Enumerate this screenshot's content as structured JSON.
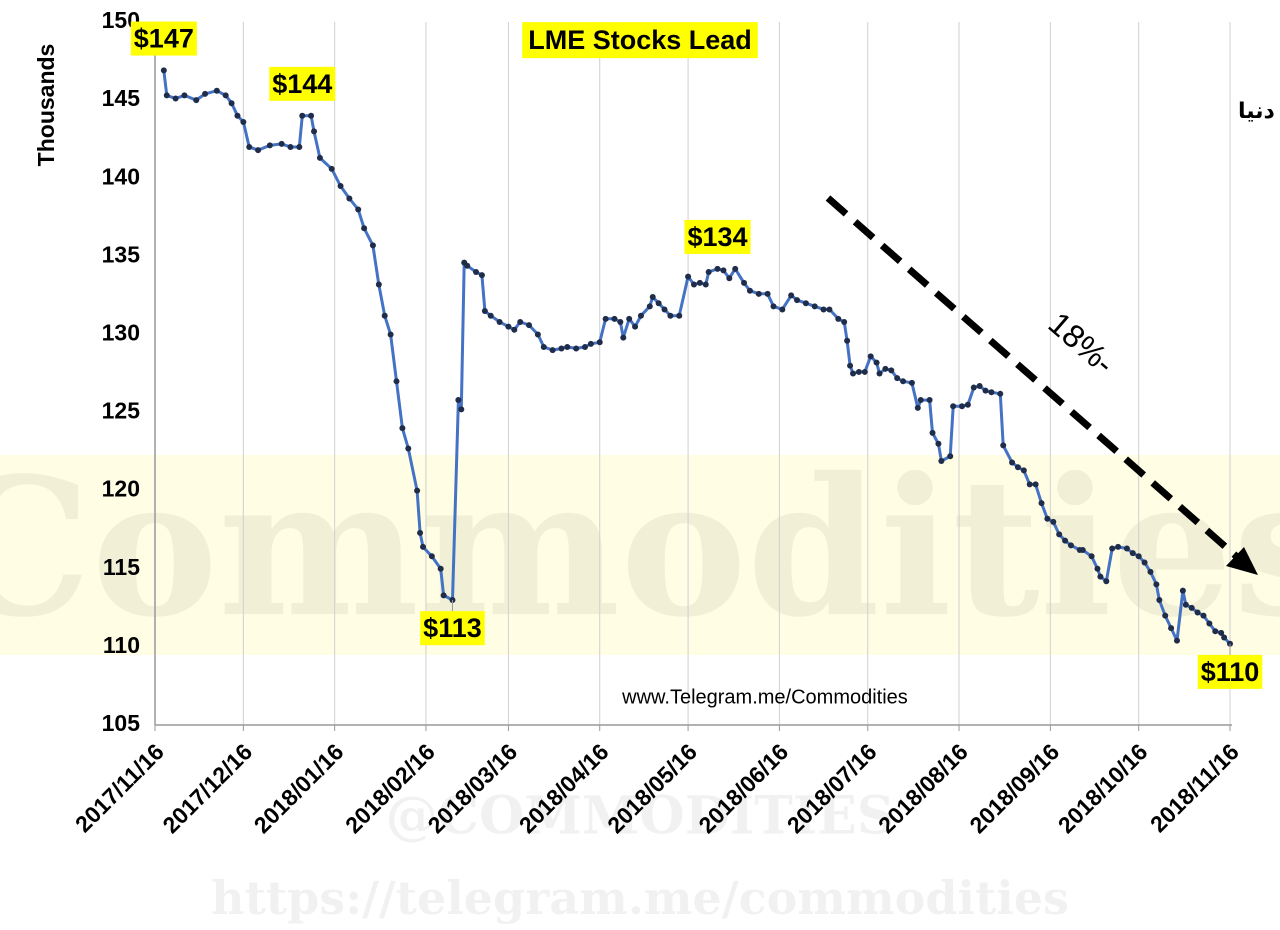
{
  "chart_data": {
    "type": "line",
    "title": "LME Stocks Lead",
    "subtitle": "تداوم کاهش موجودی سرب در انبارهای LME دنیا",
    "y_label": "Thousands",
    "trend_annotation": "18%-",
    "source": "www.Telegram.me/Commodities",
    "watermark": {
      "main": "Commodities",
      "handle": "@COMMODITIES",
      "url": "https://telegram.me/commodities"
    },
    "color": "#4472c4",
    "marker_color": "#1f2d4a",
    "grid": "x",
    "xlim": [
      "2017/11/16",
      "2018/11/16"
    ],
    "xticks": [
      "2017/11/16",
      "2017/12/16",
      "2018/01/16",
      "2018/02/16",
      "2018/03/16",
      "2018/04/16",
      "2018/05/16",
      "2018/06/16",
      "2018/07/16",
      "2018/08/16",
      "2018/09/16",
      "2018/10/16",
      "2018/11/16"
    ],
    "ylim": [
      105,
      150
    ],
    "yticks": [
      105,
      110,
      115,
      120,
      125,
      130,
      135,
      140,
      145,
      150
    ],
    "x": [
      "2017/11/19",
      "2017/11/20",
      "2017/11/23",
      "2017/11/26",
      "2017/11/30",
      "2017/12/03",
      "2017/12/07",
      "2017/12/10",
      "2017/12/12",
      "2017/12/14",
      "2017/12/16",
      "2017/12/18",
      "2017/12/21",
      "2017/12/25",
      "2017/12/29",
      "2018/01/01",
      "2018/01/04",
      "2018/01/05",
      "2018/01/08",
      "2018/01/09",
      "2018/01/11",
      "2018/01/15",
      "2018/01/18",
      "2018/01/21",
      "2018/01/24",
      "2018/01/26",
      "2018/01/29",
      "2018/01/31",
      "2018/02/02",
      "2018/02/04",
      "2018/02/06",
      "2018/02/08",
      "2018/02/10",
      "2018/02/13",
      "2018/02/14",
      "2018/02/15",
      "2018/02/18",
      "2018/02/21",
      "2018/02/22",
      "2018/02/25",
      "2018/02/27",
      "2018/02/28",
      "2018/03/01",
      "2018/03/02",
      "2018/03/05",
      "2018/03/07",
      "2018/03/08",
      "2018/03/10",
      "2018/03/13",
      "2018/03/16",
      "2018/03/18",
      "2018/03/20",
      "2018/03/23",
      "2018/03/26",
      "2018/03/28",
      "2018/03/31",
      "2018/04/03",
      "2018/04/05",
      "2018/04/08",
      "2018/04/11",
      "2018/04/13",
      "2018/04/16",
      "2018/04/18",
      "2018/04/21",
      "2018/04/23",
      "2018/04/24",
      "2018/04/26",
      "2018/04/28",
      "2018/04/30",
      "2018/05/03",
      "2018/05/04",
      "2018/05/06",
      "2018/05/08",
      "2018/05/10",
      "2018/05/13",
      "2018/05/16",
      "2018/05/18",
      "2018/05/20",
      "2018/05/22",
      "2018/05/23",
      "2018/05/26",
      "2018/05/28",
      "2018/05/30",
      "2018/06/01",
      "2018/06/04",
      "2018/06/06",
      "2018/06/09",
      "2018/06/12",
      "2018/06/14",
      "2018/06/17",
      "2018/06/20",
      "2018/06/22",
      "2018/06/25",
      "2018/06/28",
      "2018/07/01",
      "2018/07/03",
      "2018/07/06",
      "2018/07/08",
      "2018/07/09",
      "2018/07/10",
      "2018/07/11",
      "2018/07/13",
      "2018/07/15",
      "2018/07/17",
      "2018/07/19",
      "2018/07/20",
      "2018/07/22",
      "2018/07/24",
      "2018/07/26",
      "2018/07/28",
      "2018/07/31",
      "2018/08/02",
      "2018/08/03",
      "2018/08/06",
      "2018/08/07",
      "2018/08/09",
      "2018/08/10",
      "2018/08/13",
      "2018/08/14",
      "2018/08/17",
      "2018/08/19",
      "2018/08/21",
      "2018/08/23",
      "2018/08/25",
      "2018/08/27",
      "2018/08/30",
      "2018/08/31",
      "2018/09/03",
      "2018/09/05",
      "2018/09/07",
      "2018/09/09",
      "2018/09/11",
      "2018/09/13",
      "2018/09/15",
      "2018/09/17",
      "2018/09/19",
      "2018/09/21",
      "2018/09/23",
      "2018/09/26",
      "2018/09/27",
      "2018/09/30",
      "2018/10/02",
      "2018/10/03",
      "2018/10/05",
      "2018/10/07",
      "2018/10/09",
      "2018/10/12",
      "2018/10/14",
      "2018/10/16",
      "2018/10/18",
      "2018/10/20",
      "2018/10/22",
      "2018/10/23",
      "2018/10/25",
      "2018/10/27",
      "2018/10/29",
      "2018/10/31",
      "2018/11/01",
      "2018/11/03",
      "2018/11/05",
      "2018/11/07",
      "2018/11/09",
      "2018/11/11",
      "2018/11/13",
      "2018/11/14",
      "2018/11/16"
    ],
    "values": [
      146.9,
      145.3,
      145.1,
      145.3,
      145.0,
      145.4,
      145.6,
      145.3,
      144.8,
      144.0,
      143.6,
      142.0,
      141.8,
      142.1,
      142.2,
      142.0,
      142.0,
      144.0,
      144.0,
      143.0,
      141.3,
      140.6,
      139.5,
      138.7,
      138.0,
      136.8,
      135.7,
      133.2,
      131.2,
      130.0,
      127.0,
      124.0,
      122.7,
      120.0,
      117.3,
      116.4,
      115.8,
      115.0,
      113.3,
      113.0,
      125.8,
      125.2,
      134.6,
      134.4,
      134.0,
      133.8,
      131.5,
      131.2,
      130.8,
      130.5,
      130.3,
      130.8,
      130.6,
      130.0,
      129.2,
      129.0,
      129.1,
      129.2,
      129.1,
      129.2,
      129.4,
      129.5,
      131.0,
      131.0,
      130.8,
      129.8,
      131.0,
      130.5,
      131.2,
      131.8,
      132.4,
      132.0,
      131.6,
      131.2,
      131.2,
      133.7,
      133.2,
      133.3,
      133.2,
      134.0,
      134.2,
      134.1,
      133.6,
      134.2,
      133.3,
      132.8,
      132.6,
      132.6,
      131.8,
      131.6,
      132.5,
      132.2,
      132.0,
      131.8,
      131.6,
      131.6,
      131.0,
      130.8,
      129.6,
      128.0,
      127.5,
      127.6,
      127.6,
      128.6,
      128.2,
      127.5,
      127.8,
      127.7,
      127.2,
      127.0,
      126.9,
      125.3,
      125.8,
      125.8,
      123.7,
      123.0,
      121.9,
      122.2,
      125.4,
      125.4,
      125.5,
      126.6,
      126.7,
      126.4,
      126.3,
      126.2,
      122.9,
      121.8,
      121.5,
      121.3,
      120.4,
      120.4,
      119.2,
      118.2,
      118.0,
      117.2,
      116.8,
      116.5,
      116.2,
      116.2,
      115.8,
      115.0,
      114.5,
      114.2,
      116.3,
      116.4,
      116.3,
      116.0,
      115.8,
      115.4,
      114.8,
      114.0,
      113.0,
      112.0,
      111.2,
      110.4,
      113.6,
      112.7,
      112.5,
      112.2,
      112.0,
      111.5,
      111.0,
      110.9,
      110.6,
      110.2
    ],
    "value_labels": [
      "$147",
      null,
      null,
      null,
      null,
      null,
      null,
      null,
      null,
      null,
      null,
      null,
      null,
      null,
      null,
      null,
      null,
      "$144",
      null,
      null,
      null,
      null,
      null,
      null,
      null,
      null,
      null,
      null,
      null,
      null,
      null,
      null,
      null,
      null,
      null,
      null,
      null,
      null,
      null,
      "$113",
      null,
      null,
      null,
      null,
      null,
      null,
      null,
      null,
      null,
      null,
      null,
      null,
      null,
      null,
      null,
      null,
      null,
      null,
      null,
      null,
      null,
      null,
      null,
      null,
      null,
      null,
      null,
      null,
      null,
      null,
      null,
      null,
      null,
      null,
      null,
      null,
      null,
      null,
      null,
      null,
      "$134",
      null,
      null,
      null,
      null,
      null,
      null,
      null,
      null,
      null,
      null,
      null,
      null,
      null,
      null,
      null,
      null,
      null,
      null,
      null,
      null,
      null,
      null,
      null,
      null,
      null,
      null,
      null,
      null,
      null,
      null,
      null,
      null,
      null,
      null,
      null,
      null,
      null,
      null,
      null,
      null,
      null,
      null,
      null,
      null,
      null,
      null,
      null,
      null,
      null,
      null,
      null,
      null,
      null,
      null,
      null,
      null,
      null,
      null,
      null,
      null,
      null,
      null,
      null,
      null,
      null,
      null,
      null,
      null,
      null,
      null,
      null,
      null,
      null,
      null,
      null,
      null,
      null,
      null,
      null,
      null,
      null,
      null,
      null,
      null,
      "$110"
    ]
  }
}
